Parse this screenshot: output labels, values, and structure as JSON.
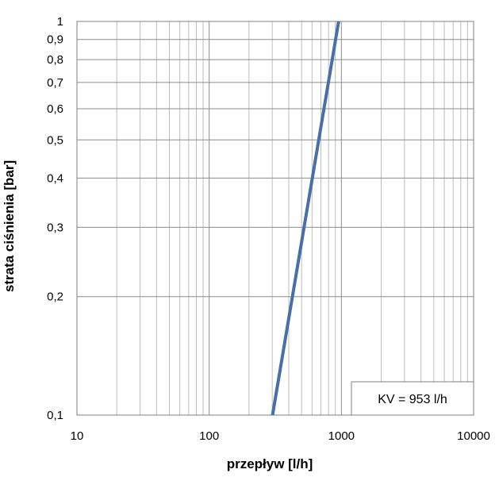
{
  "chart_data": {
    "type": "line",
    "xlabel": "przepływ [l/h]",
    "ylabel": "strata ciśnienia  [bar]",
    "x_scale": "log",
    "y_scale": "log",
    "xlim": [
      10,
      10000
    ],
    "ylim": [
      0.1,
      1
    ],
    "x_ticks": [
      10,
      100,
      1000,
      10000
    ],
    "x_tick_labels": [
      "10",
      "100",
      "1000",
      "10000"
    ],
    "y_ticks": [
      0.1,
      0.2,
      0.3,
      0.4,
      0.5,
      0.6,
      0.7,
      0.8,
      0.9,
      1
    ],
    "y_tick_labels": [
      "0,1",
      "0,2",
      "0,3",
      "0,4",
      "0,5",
      "0,6",
      "0,7",
      "0,8",
      "0,9",
      "1"
    ],
    "grid": true,
    "series": [
      {
        "color": "#4a6fa5",
        "x": [
          301.4,
          953
        ],
        "y": [
          0.1,
          1
        ]
      }
    ],
    "annotation": "KV = 953 l/h"
  }
}
